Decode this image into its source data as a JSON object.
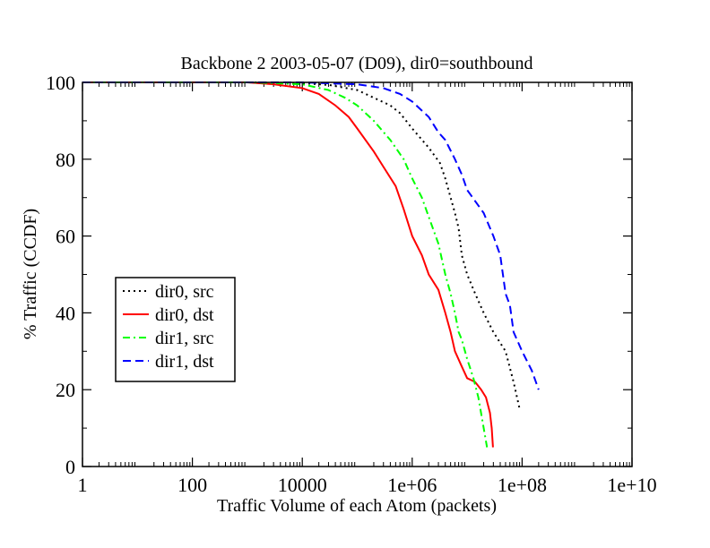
{
  "chart_data": {
    "type": "line",
    "title": "Backbone 2 2003-05-07 (D09), dir0=southbound",
    "xlabel": "Traffic Volume of each Atom (packets)",
    "ylabel": "% Traffic (CCDF)",
    "xscale": "log",
    "xlim": [
      1,
      10000000000
    ],
    "ylim": [
      0,
      100
    ],
    "x_ticks": [
      {
        "value": 1,
        "label": "1"
      },
      {
        "value": 100,
        "label": "100"
      },
      {
        "value": 10000,
        "label": "10000"
      },
      {
        "value": 1000000,
        "label": "1e+06"
      },
      {
        "value": 100000000,
        "label": "1e+08"
      },
      {
        "value": 10000000000,
        "label": "1e+10"
      }
    ],
    "y_ticks": [
      {
        "value": 0,
        "label": "0"
      },
      {
        "value": 20,
        "label": "20"
      },
      {
        "value": 40,
        "label": "40"
      },
      {
        "value": 60,
        "label": "60"
      },
      {
        "value": 80,
        "label": "80"
      },
      {
        "value": 100,
        "label": "100"
      }
    ],
    "grid": false,
    "legend_position": "left-middle",
    "series": [
      {
        "name": "dir0, src",
        "color": "#000000",
        "dash": "dotted",
        "x": [
          1,
          100,
          1000,
          3000,
          10000,
          31600,
          100000,
          200000,
          400000,
          600000,
          1000000,
          2000000,
          3200000,
          4000000,
          5000000,
          6000000,
          7000000,
          8000000,
          10000000,
          14000000,
          20000000,
          30000000,
          50000000,
          70000000,
          90000000
        ],
        "y": [
          100,
          100,
          100,
          99.9,
          99.8,
          99.3,
          98,
          96,
          94,
          92,
          88,
          83,
          79,
          75,
          70,
          66,
          62,
          55,
          50,
          45,
          40,
          35,
          30,
          22,
          15
        ]
      },
      {
        "name": "dir0, dst",
        "color": "#ff0000",
        "dash": "solid",
        "x": [
          1,
          100,
          1000,
          3000,
          10000,
          20000,
          40000,
          70000,
          100000,
          200000,
          300000,
          500000,
          700000,
          1000000,
          1500000,
          2000000,
          3000000,
          4000000,
          5000000,
          6000000,
          8000000,
          10000000,
          14000000,
          18000000,
          22000000,
          26000000,
          28000000,
          29500000
        ],
        "y": [
          100,
          100,
          100,
          99.5,
          98.5,
          97,
          94,
          91,
          88,
          82,
          78,
          73,
          67,
          60,
          55,
          50,
          46,
          40,
          35,
          30,
          26,
          23,
          22,
          20,
          18,
          14,
          10,
          5
        ]
      },
      {
        "name": "dir1, src",
        "color": "#00ff00",
        "dash": "dashdot",
        "x": [
          1,
          100,
          1000,
          3000,
          10000,
          30000,
          60000,
          100000,
          200000,
          400000,
          700000,
          1000000,
          1500000,
          2000000,
          3000000,
          4000000,
          5000000,
          6000000,
          7000000,
          8000000,
          10000000,
          13000000,
          16000000,
          20000000,
          23000000
        ],
        "y": [
          100,
          100,
          100,
          99.8,
          99.5,
          98,
          96,
          94,
          90,
          85,
          80,
          75,
          70,
          65,
          58,
          50,
          45,
          40,
          35,
          33,
          28,
          23,
          18,
          10,
          5
        ]
      },
      {
        "name": "dir1, dst",
        "color": "#0000ff",
        "dash": "dashed",
        "x": [
          1,
          1000,
          10000,
          100000,
          300000,
          600000,
          1000000,
          2000000,
          3000000,
          4000000,
          6000000,
          8000000,
          10000000,
          20000000,
          30000000,
          40000000,
          50000000,
          60000000,
          70000000,
          100000000,
          150000000,
          200000000
        ],
        "y": [
          100,
          100,
          100,
          99.5,
          98.5,
          97,
          95,
          91,
          87,
          85,
          80,
          76,
          72,
          66,
          60,
          55,
          45,
          42,
          35,
          30,
          25,
          20
        ]
      }
    ]
  }
}
